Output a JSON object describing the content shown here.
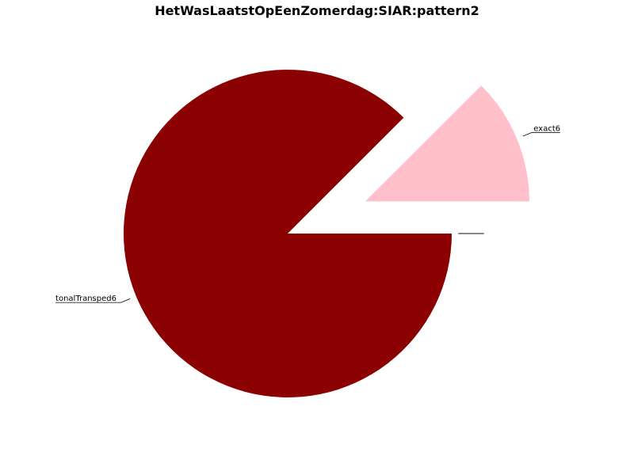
{
  "chart_data": {
    "type": "pie",
    "title": "HetWasLaatstOpEenZomerdag:SIAR:pattern2",
    "slices": [
      {
        "label": "tonalTranspend6",
        "display_label": "tonalTransped6",
        "value": 87.5,
        "color": "#8b0000",
        "explode": 0
      },
      {
        "label": "exact6",
        "display_label": "exact6",
        "value": 12.5,
        "color": "#ffc0cb",
        "explode": 1
      },
      {
        "label": "",
        "display_label": "",
        "value": 0,
        "color": "#ffffff",
        "explode": 0
      },
      {
        "label": "",
        "display_label": "",
        "value": 0,
        "color": "#ffffff",
        "explode": 0
      }
    ],
    "start_angle_deg": 0,
    "direction": "clockwise"
  }
}
